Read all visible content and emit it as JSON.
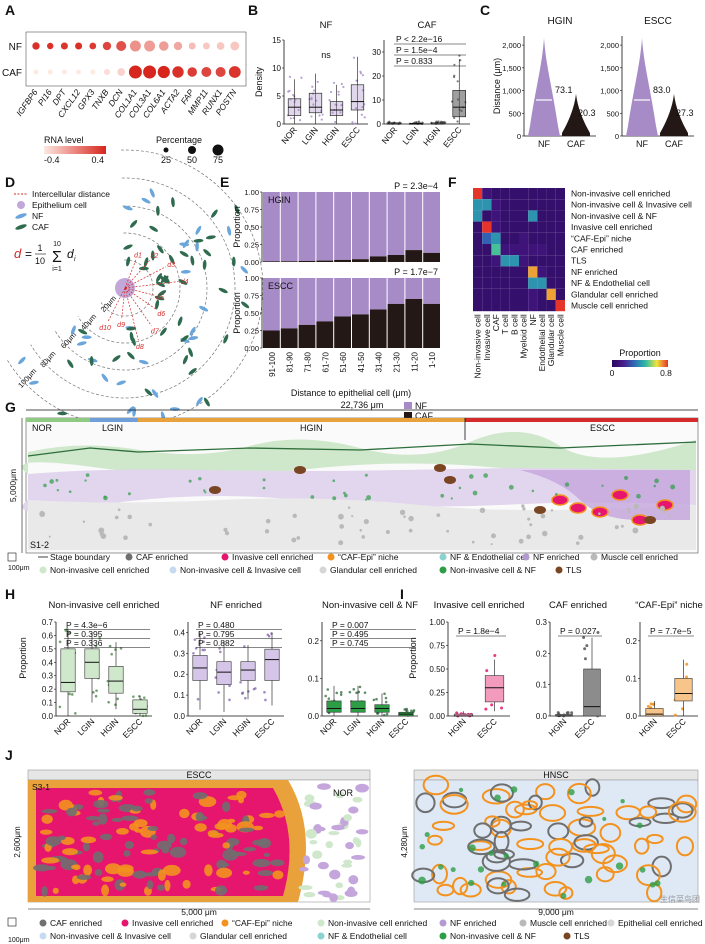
{
  "source": "生信菜鸟团",
  "colors": {
    "nf": "#a78bc6",
    "caf": "#231815",
    "nor": "#8fca82",
    "lgin": "#6f9fd8",
    "hgin": "#e9a13b",
    "escc": "#d42a2a",
    "invasive": "#e6166f",
    "cafEpi": "#f3921e",
    "nfEndo": "#8bd3cf",
    "nfEnr": "#b49ad2",
    "muscle": "#b9b9b9",
    "nonInv": "#cfe8cb",
    "nonInvInv": "#c6dbef",
    "glandular": "#d6d6d6",
    "nonInvNF": "#2d9d46",
    "tls": "#7a4522",
    "cafEnr": "#707070"
  },
  "panels": {
    "A": {
      "label": "A",
      "rows": [
        "NF",
        "CAF"
      ],
      "legend": {
        "rnaTitle": "RNA level",
        "rnaTicks": [
          "-0.4",
          "0.4"
        ],
        "pctTitle": "Percentage",
        "pctTicks": [
          "25",
          "50",
          "75"
        ]
      },
      "chart_data": {
        "type": "dot",
        "genes": [
          "IGFBP6",
          "PI16",
          "DPT",
          "CXCL12",
          "GPX3",
          "TNXB",
          "DCN",
          "COL1A1",
          "COL3A1",
          "COL6A1",
          "ACTA2",
          "FAP",
          "MMP11",
          "RUNX1",
          "POSTN"
        ],
        "nf_level": [
          0.4,
          0.4,
          0.38,
          0.4,
          0.36,
          0.3,
          0.25,
          -0.05,
          -0.1,
          -0.1,
          -0.15,
          -0.25,
          -0.3,
          -0.3,
          -0.3
        ],
        "caf_level": [
          -0.45,
          -0.45,
          -0.45,
          -0.45,
          -0.45,
          -0.4,
          -0.35,
          0.45,
          0.45,
          0.45,
          0.4,
          0.35,
          0.3,
          0.3,
          0.38
        ],
        "nf_pct": [
          18,
          12,
          16,
          16,
          14,
          25,
          40,
          50,
          50,
          35,
          25,
          15,
          15,
          20,
          30
        ],
        "caf_pct": [
          5,
          5,
          5,
          5,
          5,
          10,
          20,
          75,
          75,
          65,
          55,
          35,
          40,
          40,
          60
        ]
      }
    },
    "B": {
      "label": "B",
      "chart_data": [
        {
          "type": "box",
          "title": "NF",
          "ylabel": "Density",
          "categories": [
            "NOR",
            "LGIN",
            "HGIN",
            "ESCC"
          ],
          "yticks": [
            "0",
            "5",
            "10",
            "15"
          ],
          "ylim": [
            0,
            15
          ],
          "q1": [
            1.5,
            2.0,
            1.5,
            2.5
          ],
          "median": [
            3.0,
            3.0,
            2.5,
            4.0
          ],
          "q3": [
            4.5,
            5.5,
            4.0,
            7.0
          ],
          "whiskerLow": [
            0,
            0,
            0,
            0
          ],
          "whiskerHigh": [
            8,
            9,
            7,
            12
          ],
          "annotation": "ns"
        },
        {
          "type": "box",
          "title": "CAF",
          "categories": [
            "NOR",
            "LGIN",
            "HGIN",
            "ESCC"
          ],
          "yticks": [
            "0",
            "10",
            "20",
            "30"
          ],
          "ylim": [
            0,
            35
          ],
          "q1": [
            0,
            0,
            0,
            3
          ],
          "median": [
            0,
            0,
            0,
            7
          ],
          "q3": [
            0.5,
            0.3,
            0.5,
            14
          ],
          "whiskerLow": [
            0,
            0,
            0,
            0
          ],
          "whiskerHigh": [
            1,
            1,
            1,
            27
          ],
          "pvalues": [
            "P < 2.2e−16",
            "P = 1.5e−4",
            "P = 0.833"
          ]
        }
      ]
    },
    "C": {
      "label": "C",
      "ylabel": "Distance (μm)",
      "chart_data": [
        {
          "type": "violin",
          "title": "HGIN",
          "categories": [
            "NF",
            "CAF"
          ],
          "medians": [
            "73.1",
            "20.3"
          ],
          "yticks": [
            "0",
            "500",
            "1,000",
            "1,500",
            "2,000"
          ]
        },
        {
          "type": "violin",
          "title": "ESCC",
          "categories": [
            "NF",
            "CAF"
          ],
          "medians": [
            "83.0",
            "27.3"
          ],
          "yticks": [
            "0",
            "500",
            "1,000",
            "1,500",
            "2,000"
          ]
        }
      ]
    },
    "D": {
      "label": "D",
      "legend": [
        "Intercellular distance",
        "Epithelium cell",
        "NF",
        "CAF"
      ],
      "formula": {
        "lhs": "d",
        "frac": "1",
        "den": "10",
        "sumTop": "10",
        "sumBot": "i=1",
        "term": "d",
        "sub": "i"
      },
      "rings": [
        "20μm",
        "40μm",
        "60μm",
        "80μm",
        "100μm"
      ],
      "dLabels": [
        "d1",
        "d2",
        "d3",
        "d4",
        "d5",
        "d6",
        "d7",
        "d8",
        "d9",
        "d10"
      ]
    },
    "E": {
      "label": "E",
      "ylabel": "Proportion",
      "xlabel": "Distance to epithelial cell (μm)",
      "legend": [
        "NF",
        "CAF"
      ],
      "chart_data": {
        "type": "stacked-bar",
        "categories": [
          "91-100",
          "81-90",
          "71-80",
          "61-70",
          "51-60",
          "41-50",
          "31-40",
          "21-30",
          "11-20",
          "1-10"
        ],
        "yticks": [
          "0.00",
          "0.25",
          "0.50",
          "0.75",
          "1.00"
        ],
        "panels": [
          {
            "title": "HGIN",
            "pvalue": "P = 2.3e−4",
            "caf": [
              0.01,
              0.01,
              0.015,
              0.02,
              0.03,
              0.04,
              0.08,
              0.1,
              0.17,
              0.13
            ]
          },
          {
            "title": "ESCC",
            "pvalue": "P = 1.7e−7",
            "caf": [
              0.25,
              0.28,
              0.33,
              0.38,
              0.45,
              0.48,
              0.55,
              0.63,
              0.7,
              0.63
            ]
          }
        ]
      }
    },
    "F": {
      "label": "F",
      "rows": [
        "Non-invasive cell enriched",
        "Non-invasive cell & Invasive cell",
        "Non-invasive cell & NF",
        "Invasive cell enriched",
        "“CAF-Epi” niche",
        "CAF enriched",
        "TLS",
        "NF enriched",
        "NF & Endothelial cell",
        "Glandular cell enriched",
        "Muscle cell enriched"
      ],
      "cols": [
        "Non-invasive cell",
        "Invasive cell",
        "CAF",
        "T cell",
        "B cell",
        "Myeloid cell",
        "NF",
        "Endothelial cell",
        "Glandular cell",
        "Muscle cell"
      ],
      "legendTitle": "Proportion",
      "legendTicks": [
        "0",
        "0.8"
      ],
      "chart_data": {
        "type": "heatmap",
        "values": [
          [
            0.8,
            0.1,
            0.05,
            0.05,
            0.05,
            0.05,
            0.05,
            0.05,
            0.05,
            0.05
          ],
          [
            0.4,
            0.4,
            0.1,
            0.05,
            0.05,
            0.05,
            0.05,
            0.05,
            0.05,
            0.05
          ],
          [
            0.4,
            0.05,
            0.1,
            0.05,
            0.05,
            0.05,
            0.4,
            0.05,
            0.05,
            0.05
          ],
          [
            0.05,
            0.8,
            0.1,
            0.05,
            0.05,
            0.05,
            0.05,
            0.05,
            0.05,
            0.05
          ],
          [
            0.05,
            0.3,
            0.4,
            0.05,
            0.05,
            0.1,
            0.05,
            0.05,
            0.05,
            0.05
          ],
          [
            0.05,
            0.05,
            0.5,
            0.1,
            0.1,
            0.1,
            0.1,
            0.1,
            0.05,
            0.05
          ],
          [
            0.05,
            0.05,
            0.1,
            0.4,
            0.4,
            0.1,
            0.05,
            0.05,
            0.05,
            0.05
          ],
          [
            0.05,
            0.05,
            0.05,
            0.05,
            0.05,
            0.05,
            0.7,
            0.1,
            0.05,
            0.05
          ],
          [
            0.05,
            0.05,
            0.05,
            0.05,
            0.05,
            0.05,
            0.4,
            0.4,
            0.05,
            0.05
          ],
          [
            0.05,
            0.05,
            0.05,
            0.05,
            0.05,
            0.05,
            0.1,
            0.05,
            0.7,
            0.05
          ],
          [
            0.05,
            0.05,
            0.05,
            0.05,
            0.05,
            0.05,
            0.1,
            0.05,
            0.05,
            0.8
          ]
        ]
      }
    },
    "G": {
      "label": "G",
      "width": "22,736 μm",
      "height": "5,000μm",
      "sampleId": "S1-2",
      "stages": [
        "NOR",
        "LGIN",
        "HGIN",
        "ESCC"
      ],
      "scale": "100μm",
      "legend": [
        {
          "label": "Stage boundary",
          "key": "boundary"
        },
        {
          "label": "CAF enriched",
          "key": "cafEnr"
        },
        {
          "label": "Invasive cell enriched",
          "key": "invasive"
        },
        {
          "label": "“CAF-Epi” niche",
          "key": "cafEpi"
        },
        {
          "label": "NF & Endothelial cell",
          "key": "nfEndo"
        },
        {
          "label": "NF enriched",
          "key": "nfEnr"
        },
        {
          "label": "Muscle cell enriched",
          "key": "muscle"
        },
        {
          "label": "Non-invasive cell enriched",
          "key": "nonInv"
        },
        {
          "label": "Non-invasive cell & Invasive cell",
          "key": "nonInvInv"
        },
        {
          "label": "Glandular cell enriched",
          "key": "glandular"
        },
        {
          "label": "Non-invasive cell & NF",
          "key": "nonInvNF"
        },
        {
          "label": "TLS",
          "key": "tls"
        }
      ]
    },
    "H": {
      "label": "H",
      "ylabel": "Proportion",
      "chart_data": [
        {
          "type": "box",
          "title": "Non-invasive cell enriched",
          "categories": [
            "NOR",
            "LGIN",
            "HGIN",
            "ESCC"
          ],
          "yticks": [
            "0.0",
            "0.1",
            "0.2",
            "0.3",
            "0.4",
            "0.5",
            "0.6",
            "0.7"
          ],
          "ylim": [
            0,
            0.7
          ],
          "q1": [
            0.18,
            0.28,
            0.17,
            0.02
          ],
          "median": [
            0.25,
            0.4,
            0.26,
            0.05
          ],
          "q3": [
            0.5,
            0.5,
            0.37,
            0.12
          ],
          "whiskerLow": [
            0.0,
            0.1,
            0.05,
            0.0
          ],
          "whiskerHigh": [
            0.65,
            0.62,
            0.55,
            0.15
          ],
          "pvalues": [
            "P = 4.3e−6",
            "P = 0.395",
            "P = 0.336"
          ]
        },
        {
          "type": "box",
          "title": "NF enriched",
          "categories": [
            "NOR",
            "LGIN",
            "HGIN",
            "ESCC"
          ],
          "yticks": [
            "0.0",
            "0.1",
            "0.2",
            "0.3",
            "0.4"
          ],
          "ylim": [
            0,
            0.45
          ],
          "q1": [
            0.17,
            0.15,
            0.17,
            0.17
          ],
          "median": [
            0.23,
            0.21,
            0.22,
            0.27
          ],
          "q3": [
            0.29,
            0.26,
            0.26,
            0.32
          ],
          "whiskerLow": [
            0.03,
            0.02,
            0.08,
            0.05
          ],
          "whiskerHigh": [
            0.4,
            0.36,
            0.34,
            0.4
          ],
          "pvalues": [
            "P = 0.480",
            "P = 0.795",
            "P = 0.882"
          ]
        },
        {
          "type": "box",
          "title": "Non-invasive cell & NF",
          "categories": [
            "NOR",
            "LGIN",
            "HGIN",
            "ESCC"
          ],
          "yticks": [
            "0.0",
            "0.1",
            "0.2"
          ],
          "ylim": [
            0,
            0.25
          ],
          "q1": [
            0.01,
            0.01,
            0.01,
            0.0
          ],
          "median": [
            0.02,
            0.02,
            0.02,
            0.005
          ],
          "q3": [
            0.04,
            0.04,
            0.03,
            0.01
          ],
          "whiskerLow": [
            0,
            0,
            0,
            0
          ],
          "whiskerHigh": [
            0.08,
            0.08,
            0.06,
            0.02
          ],
          "pvalues": [
            "P = 0.007",
            "P = 0.495",
            "P = 0.745"
          ]
        }
      ]
    },
    "I": {
      "label": "I",
      "ylabel": "Proportion",
      "chart_data": [
        {
          "type": "box",
          "title": "Invasive cell enriched",
          "categories": [
            "HGIN",
            "ESCC"
          ],
          "yticks": [
            "0.00",
            "0.25",
            "0.50",
            "0.75",
            "1.00"
          ],
          "ylim": [
            0,
            1.0
          ],
          "q1": [
            0.0,
            0.15
          ],
          "median": [
            0.0,
            0.3
          ],
          "q3": [
            0.02,
            0.43
          ],
          "whiskerLow": [
            0,
            0.05
          ],
          "whiskerHigh": [
            0.05,
            0.6
          ],
          "pvalues": [
            "P = 1.8e−4"
          ]
        },
        {
          "type": "box",
          "title": "CAF enriched",
          "categories": [
            "HGIN",
            "ESCC"
          ],
          "yticks": [
            "0.0",
            "0.1",
            "0.2",
            "0.3"
          ],
          "ylim": [
            0,
            0.3
          ],
          "q1": [
            0.0,
            0.0
          ],
          "median": [
            0.0,
            0.03
          ],
          "q3": [
            0.005,
            0.15
          ],
          "whiskerLow": [
            0,
            0
          ],
          "whiskerHigh": [
            0.01,
            0.25
          ],
          "pvalues": [
            "P = 0.027"
          ]
        },
        {
          "type": "box",
          "title": "“CAF-Epi” niche",
          "categories": [
            "HGIN",
            "ESCC"
          ],
          "yticks": [
            "0.0",
            "0.1",
            "0.2"
          ],
          "ylim": [
            0,
            0.25
          ],
          "q1": [
            0.0,
            0.04
          ],
          "median": [
            0.005,
            0.06
          ],
          "q3": [
            0.02,
            0.1
          ],
          "whiskerLow": [
            0,
            0
          ],
          "whiskerHigh": [
            0.04,
            0.15
          ],
          "pvalues": [
            "P = 7.7e−5"
          ]
        }
      ]
    },
    "J": {
      "label": "J",
      "sampleId": "S3-1",
      "leftTitle": "ESCC",
      "leftTag": "NOR",
      "leftWidth": "5,000 μm",
      "leftHeight": "2,600μm",
      "rightTitle": "HNSC",
      "rightWidth": "9,000 μm",
      "rightHeight": "4,280μm",
      "scale": "100μm",
      "legend": [
        {
          "label": "CAF enriched",
          "key": "cafEnr"
        },
        {
          "label": "Invasive cell enriched",
          "key": "invasive"
        },
        {
          "label": "“CAF-Epi” niche",
          "key": "cafEpi"
        },
        {
          "label": "Non-invasive cell enriched",
          "key": "nonInv"
        },
        {
          "label": "NF enriched",
          "key": "nfEnr"
        },
        {
          "label": "Muscle cell enriched",
          "key": "muscle"
        },
        {
          "label": "Epithelial cell enriched",
          "key": "glandular"
        },
        {
          "label": "Non-invasive cell & Invasive cell",
          "key": "nonInvInv"
        },
        {
          "label": "Glandular cell enriched",
          "key": "glandular"
        },
        {
          "label": "NF & Endothelial cell",
          "key": "nfEndo"
        },
        {
          "label": "Non-invasive cell & NF",
          "key": "nonInvNF"
        },
        {
          "label": "TLS",
          "key": "tls"
        }
      ]
    }
  }
}
